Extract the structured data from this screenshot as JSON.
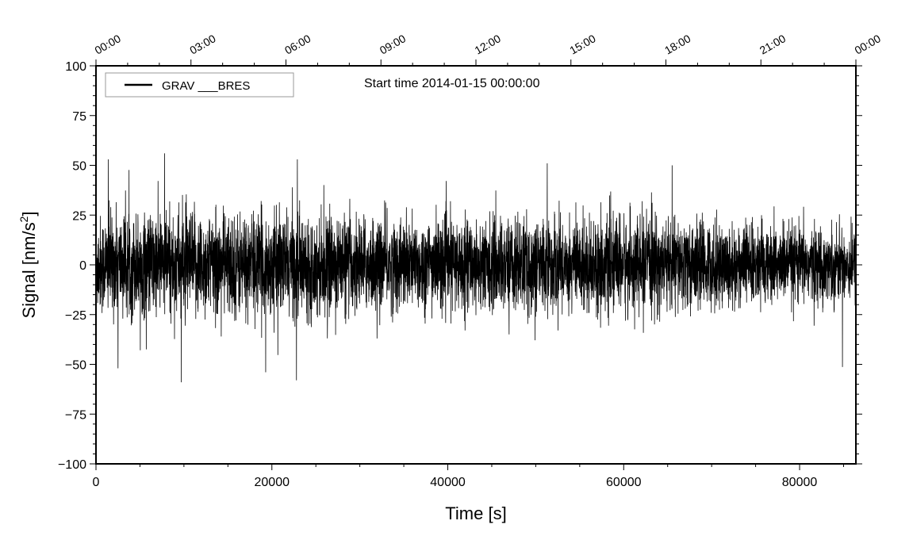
{
  "chart_data": {
    "type": "line",
    "title": "Start time 2014-01-15 00:00:00",
    "xlabel": "Time [s]",
    "ylabel": "Signal [nm/s",
    "ylabel_sup": "2",
    "ylabel_end": "]",
    "xlim": [
      0,
      86400
    ],
    "ylim": [
      -100,
      100
    ],
    "xticks": [
      0,
      20000,
      40000,
      60000,
      80000
    ],
    "xtick_labels": [
      "0",
      "20000",
      "40000",
      "60000",
      "80000"
    ],
    "yticks": [
      100,
      75,
      50,
      25,
      0,
      -25,
      -50,
      -75,
      -100
    ],
    "ytick_labels": [
      "100",
      "75",
      "50",
      "25",
      "0",
      "−25",
      "−50",
      "−75",
      "−100"
    ],
    "top_axis_ticks_hours": [
      0,
      3,
      6,
      9,
      12,
      15,
      18,
      21,
      24
    ],
    "top_axis_labels": [
      "00:00",
      "03:00",
      "06:00",
      "09:00",
      "12:00",
      "15:00",
      "18:00",
      "21:00",
      "00:00"
    ],
    "legend": {
      "entries": [
        "GRAV ___BRES"
      ],
      "placement": "top-left"
    },
    "grid": false,
    "series": [
      {
        "name": "GRAV ___BRES",
        "color": "#000000",
        "description_envelope": {
          "x": [
            0,
            10000,
            20000,
            30000,
            40000,
            50000,
            60000,
            70000,
            80000,
            86400
          ],
          "typical_amplitude": [
            22,
            24,
            22,
            21,
            20,
            21,
            21,
            19,
            17,
            16
          ]
        },
        "peaks": [
          {
            "x": 1400,
            "y": 53
          },
          {
            "x": 7800,
            "y": 56
          },
          {
            "x": 9700,
            "y": -59
          },
          {
            "x": 22800,
            "y": -58
          },
          {
            "x": 22900,
            "y": 53
          },
          {
            "x": 19300,
            "y": -54
          },
          {
            "x": 51300,
            "y": 51
          },
          {
            "x": 65500,
            "y": 50
          },
          {
            "x": 2500,
            "y": -52
          }
        ]
      }
    ]
  }
}
